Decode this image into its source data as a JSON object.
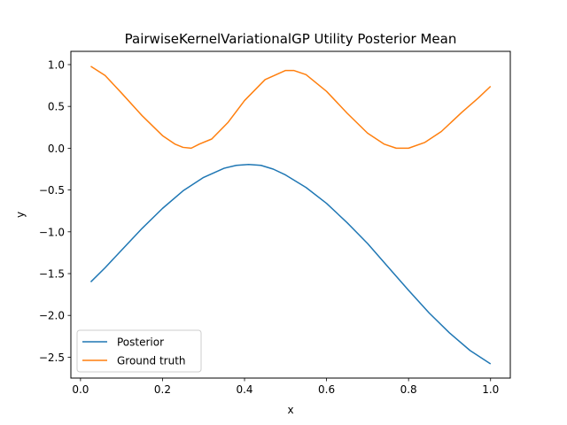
{
  "chart_data": {
    "type": "line",
    "title": "PairwiseKernelVariationalGP Utility Posterior Mean",
    "xlabel": "x",
    "ylabel": "y",
    "xlim": [
      -0.0235,
      1.0481
    ],
    "ylim": [
      -2.7496,
      1.1585
    ],
    "xticks": [
      0.0,
      0.2,
      0.4,
      0.6,
      0.8,
      1.0
    ],
    "xtick_labels": [
      "0.0",
      "0.2",
      "0.4",
      "0.6",
      "0.8",
      "1.0"
    ],
    "yticks": [
      -2.5,
      -2.0,
      -1.5,
      -1.0,
      -0.5,
      0.0,
      0.5,
      1.0
    ],
    "ytick_labels": [
      "−2.5",
      "−2.0",
      "−1.5",
      "−1.0",
      "−0.5",
      "0.0",
      "0.5",
      "1.0"
    ],
    "grid": false,
    "legend_position": "lower-left",
    "series": [
      {
        "name": "Posterior",
        "color": "#1f77b4",
        "x": [
          0.025,
          0.06,
          0.1,
          0.15,
          0.2,
          0.25,
          0.3,
          0.35,
          0.38,
          0.41,
          0.44,
          0.47,
          0.5,
          0.55,
          0.6,
          0.65,
          0.7,
          0.75,
          0.8,
          0.85,
          0.9,
          0.95,
          1.0
        ],
        "values": [
          -1.6,
          -1.43,
          -1.22,
          -0.96,
          -0.72,
          -0.51,
          -0.35,
          -0.24,
          -0.205,
          -0.195,
          -0.205,
          -0.25,
          -0.32,
          -0.47,
          -0.66,
          -0.89,
          -1.14,
          -1.42,
          -1.7,
          -1.97,
          -2.21,
          -2.42,
          -2.58
        ]
      },
      {
        "name": "Ground truth",
        "color": "#ff7f0e",
        "x": [
          0.025,
          0.06,
          0.1,
          0.15,
          0.2,
          0.23,
          0.25,
          0.27,
          0.29,
          0.32,
          0.36,
          0.4,
          0.45,
          0.5,
          0.52,
          0.55,
          0.6,
          0.65,
          0.7,
          0.74,
          0.77,
          0.8,
          0.84,
          0.88,
          0.93,
          0.97,
          1.0
        ],
        "values": [
          0.98,
          0.87,
          0.66,
          0.39,
          0.15,
          0.05,
          0.01,
          0.0,
          0.05,
          0.11,
          0.31,
          0.57,
          0.82,
          0.93,
          0.93,
          0.88,
          0.68,
          0.42,
          0.18,
          0.05,
          0.0,
          0.0,
          0.07,
          0.2,
          0.43,
          0.6,
          0.74
        ]
      }
    ]
  }
}
